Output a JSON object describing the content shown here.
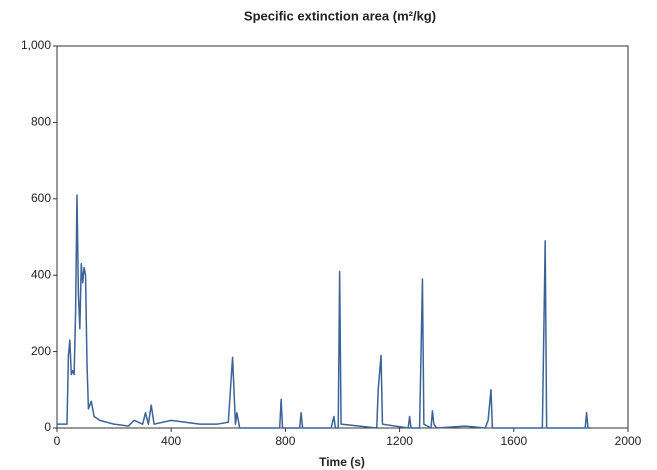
{
  "chart_data": {
    "type": "line",
    "title": "Specific extinction area (m²/kg)",
    "x_label": "Time (s)",
    "x": [
      0,
      35,
      40,
      45,
      50,
      55,
      60,
      65,
      70,
      75,
      80,
      85,
      90,
      95,
      100,
      105,
      110,
      120,
      130,
      150,
      200,
      250,
      270,
      300,
      310,
      320,
      330,
      340,
      400,
      450,
      500,
      560,
      600,
      615,
      625,
      630,
      640,
      780,
      785,
      790,
      850,
      855,
      860,
      960,
      970,
      975,
      985,
      990,
      995,
      1120,
      1125,
      1135,
      1140,
      1230,
      1235,
      1240,
      1270,
      1280,
      1285,
      1310,
      1315,
      1320,
      1330,
      1430,
      1500,
      1510,
      1520,
      1525,
      1700,
      1710,
      1715,
      1850,
      1855,
      1860,
      1870
    ],
    "series": [
      {
        "name": "Specific extinction area",
        "color": "#3b6398",
        "values": [
          10,
          10,
          190,
          230,
          140,
          150,
          140,
          300,
          610,
          350,
          260,
          430,
          380,
          420,
          400,
          170,
          50,
          70,
          30,
          20,
          10,
          5,
          20,
          10,
          40,
          10,
          60,
          10,
          20,
          15,
          10,
          10,
          15,
          185,
          10,
          40,
          0,
          0,
          75,
          0,
          0,
          40,
          0,
          0,
          30,
          0,
          0,
          410,
          10,
          0,
          100,
          190,
          10,
          0,
          30,
          0,
          0,
          390,
          10,
          0,
          45,
          10,
          0,
          5,
          0,
          20,
          100,
          0,
          0,
          490,
          0,
          0,
          40,
          0,
          0
        ]
      }
    ],
    "xlim": [
      0,
      2000
    ],
    "xticks": [
      0,
      400,
      800,
      1200,
      1600,
      2000
    ],
    "ylim": [
      0,
      1000
    ],
    "yticks": [
      0,
      200,
      400,
      600,
      800,
      {
        "value": 1000,
        "label": "1,000"
      }
    ]
  }
}
